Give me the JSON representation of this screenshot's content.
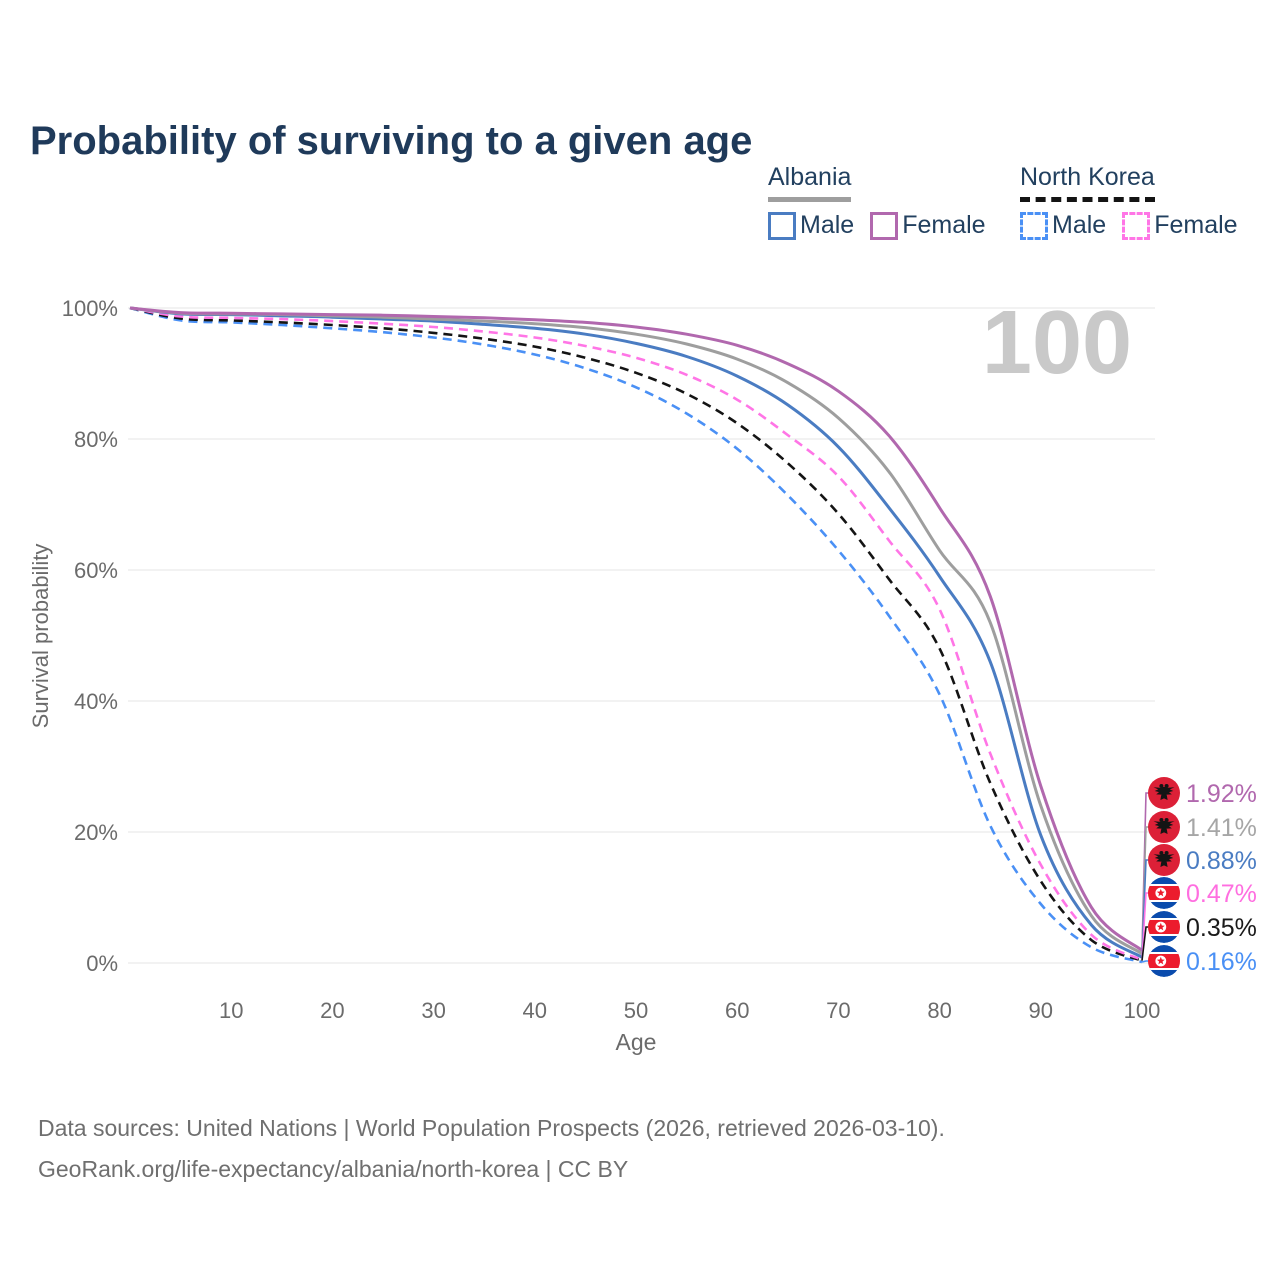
{
  "title": "Probability of surviving to a given age",
  "watermark": "100",
  "legend": {
    "albania": {
      "title": "Albania",
      "male_label": "Male",
      "female_label": "Female"
    },
    "north_korea": {
      "title": "North Korea",
      "male_label": "Male",
      "female_label": "Female"
    }
  },
  "colors": {
    "albania_male": "#4a7cc2",
    "albania_female": "#b168ae",
    "albania_all": "#9e9e9e",
    "nk_male": "#4a90f5",
    "nk_female": "#ff75e6",
    "nk_all": "#141414",
    "albania_all_label": "#a6a6a6",
    "title_text": "#1f3a5a",
    "axis_text": "#6b6b6b",
    "grid": "#eaeaea",
    "watermark": "#c9c9c9",
    "footer_text": "#6f6f6f",
    "albania_flag_red": "#dc2037",
    "nk_flag_red": "#ec1c2d",
    "nk_flag_blue": "#0a4bad"
  },
  "chart_data": {
    "type": "line",
    "title": "Probability of surviving to a given age",
    "xlabel": "Age",
    "ylabel": "Survival probability",
    "xlim": [
      0,
      100
    ],
    "ylim": [
      0,
      100
    ],
    "grid": "horizontal",
    "legend_position": "top-right",
    "x_ticks": [
      10,
      20,
      30,
      40,
      50,
      60,
      70,
      80,
      90,
      100
    ],
    "y_ticks": [
      {
        "value": 0,
        "label": "0%"
      },
      {
        "value": 20,
        "label": "20%"
      },
      {
        "value": 40,
        "label": "40%"
      },
      {
        "value": 60,
        "label": "60%"
      },
      {
        "value": 80,
        "label": "80%"
      },
      {
        "value": 100,
        "label": "100%"
      }
    ],
    "ages": [
      0,
      5,
      10,
      15,
      20,
      25,
      30,
      35,
      40,
      45,
      50,
      55,
      60,
      65,
      70,
      75,
      80,
      85,
      90,
      95,
      100
    ],
    "series": [
      {
        "id": "albania_female",
        "name": "Albania Female",
        "country": "Albania",
        "sex": "Female",
        "line_style": "solid",
        "color": "#b168ae",
        "label_color": "#b168ae",
        "flag": "albania-flag-icon",
        "end_label": "1.92%",
        "end_value": 1.92,
        "values": [
          100,
          99.3,
          99.2,
          99.1,
          99.0,
          98.9,
          98.7,
          98.5,
          98.2,
          97.8,
          97.1,
          96.0,
          94.3,
          91.5,
          87.3,
          80.5,
          69.5,
          56.0,
          27.0,
          8.5,
          1.92
        ]
      },
      {
        "id": "albania_all",
        "name": "Albania",
        "country": "Albania",
        "sex": "All",
        "line_style": "solid",
        "color": "#9e9e9e",
        "label_color": "#a6a6a6",
        "flag": "albania-flag-icon",
        "end_label": "1.41%",
        "end_value": 1.41,
        "values": [
          100,
          99.2,
          99.1,
          99.0,
          98.8,
          98.6,
          98.3,
          98.0,
          97.6,
          97.0,
          96.0,
          94.5,
          92.2,
          88.6,
          83.2,
          75.0,
          63.0,
          52.0,
          24.0,
          7.2,
          1.41
        ]
      },
      {
        "id": "albania_male",
        "name": "Albania Male",
        "country": "Albania",
        "sex": "Male",
        "line_style": "solid",
        "color": "#4a7cc2",
        "label_color": "#4a7cc2",
        "flag": "albania-flag-icon",
        "end_label": "0.88%",
        "end_value": 0.88,
        "values": [
          100,
          99.1,
          99.0,
          98.8,
          98.6,
          98.3,
          98.0,
          97.5,
          96.9,
          96.0,
          94.6,
          92.6,
          89.6,
          85.2,
          78.8,
          69.5,
          59.0,
          46.0,
          19.5,
          5.8,
          0.88
        ]
      },
      {
        "id": "nk_female",
        "name": "North Korea Female",
        "country": "North Korea",
        "sex": "Female",
        "line_style": "dashed",
        "color": "#ff75e6",
        "label_color": "#ff6ee0",
        "flag": "north-korea-flag-icon",
        "end_label": "0.47%",
        "end_value": 0.47,
        "values": [
          100,
          98.7,
          98.5,
          98.3,
          98.0,
          97.6,
          97.1,
          96.4,
          95.5,
          94.2,
          92.4,
          89.8,
          86.0,
          80.6,
          74.3,
          64.5,
          54.0,
          32.0,
          15.0,
          4.3,
          0.47
        ]
      },
      {
        "id": "nk_all",
        "name": "North Korea",
        "country": "North Korea",
        "sex": "All",
        "line_style": "dashed",
        "color": "#141414",
        "label_color": "#1a1a1a",
        "flag": "north-korea-flag-icon",
        "end_label": "0.35%",
        "end_value": 0.35,
        "values": [
          100,
          98.4,
          98.1,
          97.8,
          97.4,
          96.9,
          96.2,
          95.3,
          94.1,
          92.4,
          90.1,
          86.9,
          82.4,
          76.3,
          68.6,
          58.6,
          48.0,
          27.5,
          12.5,
          3.5,
          0.35
        ]
      },
      {
        "id": "nk_male",
        "name": "North Korea Male",
        "country": "North Korea",
        "sex": "Male",
        "line_style": "dashed",
        "color": "#4a90f5",
        "label_color": "#4a90f5",
        "flag": "north-korea-flag-icon",
        "end_label": "0.16%",
        "end_value": 0.16,
        "values": [
          100,
          98.1,
          97.8,
          97.4,
          96.9,
          96.3,
          95.5,
          94.4,
          92.9,
          90.8,
          87.9,
          83.9,
          78.5,
          71.4,
          63.0,
          53.0,
          41.0,
          21.0,
          9.0,
          2.4,
          0.16
        ]
      }
    ]
  },
  "footer": {
    "line1": "Data sources: United Nations | World Population Prospects (2026, retrieved 2026-03-10).",
    "line2": "GeoRank.org/life-expectancy/albania/north-korea | CC BY"
  }
}
